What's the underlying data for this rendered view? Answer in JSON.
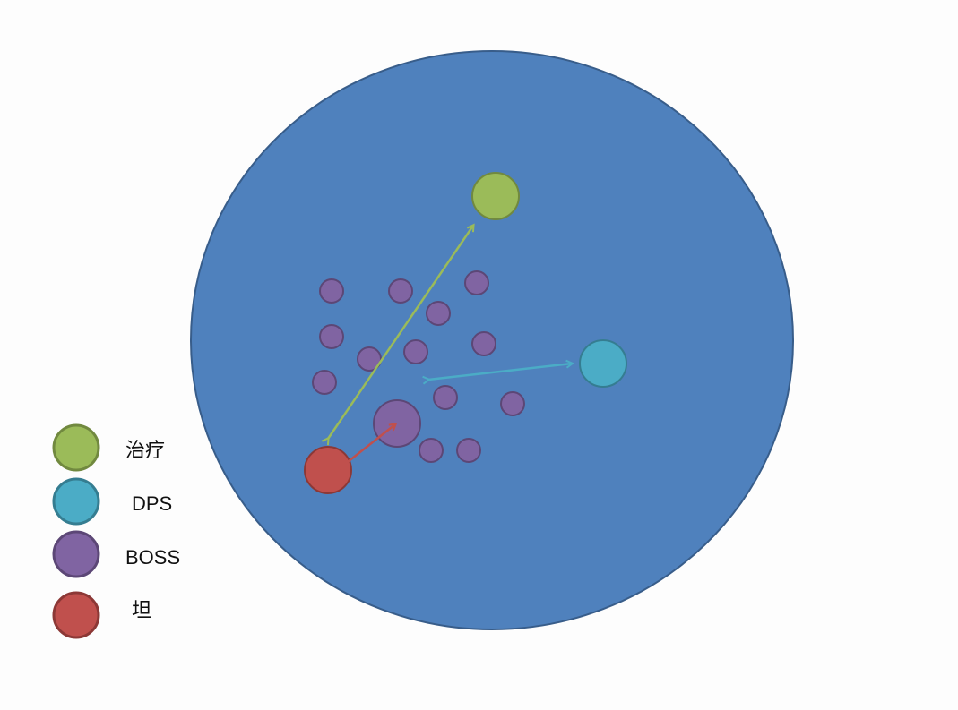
{
  "colors": {
    "arena_fill": "#4f81bd",
    "arena_stroke": "#385d8a",
    "healer_fill": "#9bbb59",
    "healer_stroke": "#71893f",
    "dps_fill": "#4bacc6",
    "dps_stroke": "#357d91",
    "boss_fill": "#8064a2",
    "boss_stroke": "#5c4776",
    "tank_fill": "#c0504d",
    "tank_stroke": "#8c3836",
    "arrow_green": "#9bbb59",
    "arrow_cyan": "#4bacc6",
    "arrow_red": "#c0504d"
  },
  "legend": [
    {
      "key": "healer",
      "label": "治疗"
    },
    {
      "key": "dps",
      "label": "DPS"
    },
    {
      "key": "boss",
      "label": "BOSS"
    },
    {
      "key": "tank",
      "label": "坦"
    }
  ]
}
